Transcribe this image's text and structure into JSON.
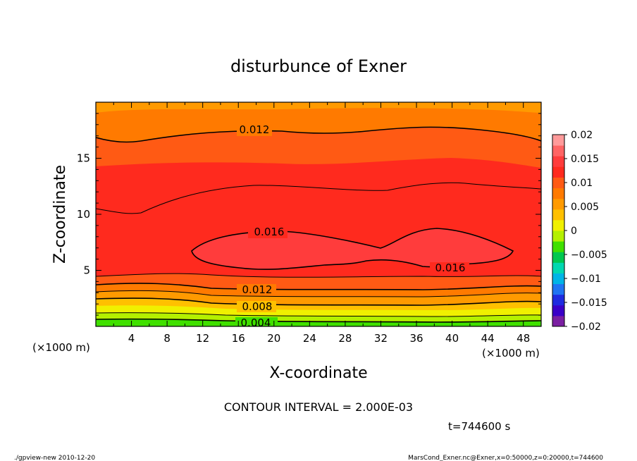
{
  "chart_data": {
    "type": "heatmap",
    "title": "disturbunce of Exner",
    "xlabel": "X-coordinate",
    "ylabel": "Z-coordinate",
    "x_unit": "(×1000 m)",
    "z_unit": "(×1000 m)",
    "xlim": [
      0,
      50
    ],
    "ylim": [
      0,
      20
    ],
    "x_ticks": [
      "4",
      "8",
      "12",
      "16",
      "20",
      "24",
      "28",
      "32",
      "36",
      "40",
      "44",
      "48"
    ],
    "y_ticks": [
      "5",
      "10",
      "15"
    ],
    "colorbar": {
      "ticks": [
        "0.02",
        "0.015",
        "0.01",
        "0.005",
        "0",
        "−0.005",
        "−0.01",
        "−0.015",
        "−0.02"
      ],
      "range": [
        -0.02,
        0.02
      ],
      "colors": [
        "#7b1fa2",
        "#3a00c8",
        "#1f2be0",
        "#1f74f2",
        "#00b4e6",
        "#00d8b0",
        "#00c850",
        "#40e000",
        "#b4f000",
        "#f0f000",
        "#ffc000",
        "#ff9a00",
        "#ff7a00",
        "#ff5a14",
        "#ff2a1e",
        "#ff3c3c",
        "#ff6464",
        "#ff9a9a"
      ]
    },
    "contour_labels": [
      "0.012",
      "0.016",
      "0.016",
      "0.012",
      "0.008",
      "0.004"
    ],
    "contour_interval_text": "CONTOUR INTERVAL = 2.000E-03",
    "time_text": "t=744600 s"
  },
  "footer": {
    "left": "./gpview-new   2010-12-20",
    "right": "MarsCond_Exner.nc@Exner,x=0:50000,z=0:20000,t=744600"
  }
}
